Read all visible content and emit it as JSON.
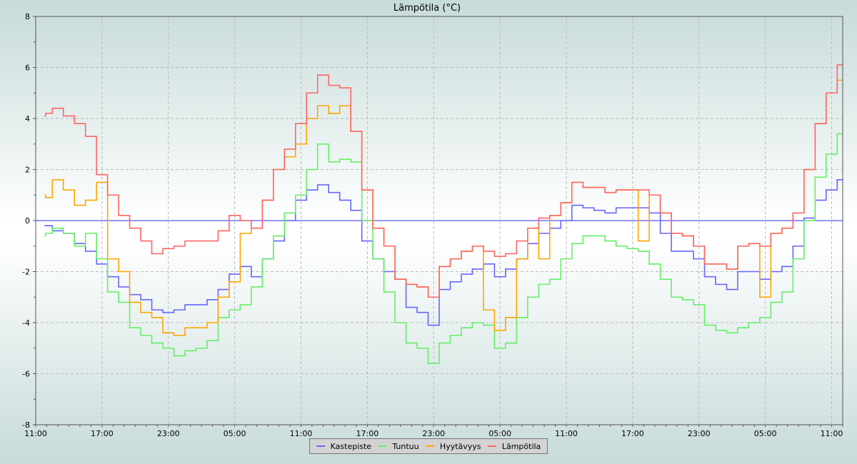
{
  "chart_data": {
    "type": "line",
    "title": "Lämpötila (°C)",
    "xlabel": "",
    "ylabel": "",
    "ylim": [
      -8,
      8
    ],
    "yticks": [
      -8,
      -6,
      -4,
      -2,
      0,
      2,
      4,
      6,
      8
    ],
    "xtick_labels": [
      "11:00",
      "17:00",
      "23:00",
      "05:00",
      "11:00",
      "17:00",
      "23:00",
      "05:00",
      "11:00",
      "17:00",
      "23:00",
      "05:00",
      "11:00"
    ],
    "grid": true,
    "legend_position": "bottom",
    "reference_line": {
      "y": 0,
      "color": "#5555ff"
    },
    "x": [
      "11:48",
      "12:00",
      "13:00",
      "14:00",
      "15:00",
      "16:00",
      "17:00",
      "18:00",
      "19:00",
      "20:00",
      "21:00",
      "22:00",
      "23:00",
      "00:00",
      "01:00",
      "02:00",
      "03:00",
      "04:00",
      "05:00",
      "06:00",
      "07:00",
      "08:00",
      "09:00",
      "10:00",
      "11:00",
      "12:00",
      "13:00",
      "14:00",
      "15:00",
      "16:00",
      "17:00",
      "18:00",
      "19:00",
      "20:00",
      "21:00",
      "22:00",
      "23:00",
      "00:00",
      "01:00",
      "02:00",
      "03:00",
      "04:00",
      "05:00",
      "06:00",
      "07:00",
      "08:00",
      "09:00",
      "10:00",
      "11:00",
      "12:00",
      "13:00",
      "14:00",
      "15:00",
      "16:00",
      "17:00",
      "18:00",
      "19:00",
      "20:00",
      "21:00",
      "22:00",
      "23:00",
      "00:00",
      "01:00",
      "02:00",
      "03:00",
      "04:00",
      "05:00",
      "06:00",
      "07:00",
      "08:00",
      "09:00",
      "10:00",
      "11:00",
      "12:00"
    ],
    "series": [
      {
        "name": "Kastepiste",
        "color": "#6666ff",
        "values": [
          -0.2,
          -0.2,
          -0.4,
          -0.5,
          -0.9,
          -1.2,
          -1.7,
          -2.2,
          -2.6,
          -2.9,
          -3.1,
          -3.5,
          -3.6,
          -3.5,
          -3.3,
          -3.3,
          -3.1,
          -2.7,
          -2.1,
          -1.8,
          -2.2,
          -1.5,
          -0.8,
          0.0,
          0.8,
          1.2,
          1.4,
          1.1,
          0.8,
          0.4,
          -0.8,
          -1.5,
          -2.0,
          -2.3,
          -3.4,
          -3.6,
          -4.1,
          -2.7,
          -2.4,
          -2.1,
          -1.9,
          -1.7,
          -2.2,
          -1.9,
          -1.5,
          -0.9,
          -0.5,
          -0.3,
          0.0,
          0.6,
          0.5,
          0.4,
          0.3,
          0.5,
          0.5,
          0.5,
          0.3,
          -0.5,
          -1.2,
          -1.2,
          -1.5,
          -2.2,
          -2.5,
          -2.7,
          -2.0,
          -2.0,
          -2.3,
          -2.0,
          -1.8,
          -1.0,
          0.1,
          0.8,
          1.2,
          1.6
        ]
      },
      {
        "name": "Tuntuu",
        "color": "#66ee66",
        "values": [
          -0.6,
          -0.5,
          -0.3,
          -0.5,
          -1.0,
          -0.5,
          -1.5,
          -2.8,
          -3.2,
          -4.2,
          -4.5,
          -4.8,
          -5.0,
          -5.3,
          -5.1,
          -5.0,
          -4.7,
          -3.8,
          -3.5,
          -3.3,
          -2.6,
          -1.5,
          -0.6,
          0.3,
          1.0,
          2.0,
          3.0,
          2.3,
          2.4,
          2.3,
          0.0,
          -1.5,
          -2.8,
          -4.0,
          -4.8,
          -5.0,
          -5.6,
          -4.8,
          -4.5,
          -4.2,
          -4.0,
          -4.1,
          -5.0,
          -4.8,
          -3.8,
          -3.0,
          -2.5,
          -2.3,
          -1.5,
          -0.9,
          -0.6,
          -0.6,
          -0.8,
          -1.0,
          -1.1,
          -1.2,
          -1.7,
          -2.3,
          -3.0,
          -3.1,
          -3.3,
          -4.1,
          -4.3,
          -4.4,
          -4.2,
          -4.0,
          -3.8,
          -3.2,
          -2.8,
          -1.5,
          0.0,
          1.7,
          2.6,
          3.4
        ]
      },
      {
        "name": "Hyytävyys",
        "color": "#ffa500",
        "values": [
          1.0,
          0.9,
          1.6,
          1.2,
          0.6,
          0.8,
          1.5,
          -1.5,
          -2.0,
          -3.2,
          -3.6,
          -3.8,
          -4.4,
          -4.5,
          -4.2,
          -4.2,
          -4.0,
          -3.0,
          -2.4,
          -0.5,
          -0.3,
          0.8,
          2.0,
          2.5,
          3.0,
          4.0,
          4.5,
          4.2,
          4.5,
          3.5,
          1.2,
          -0.3,
          -1.0,
          -2.3,
          -2.5,
          -2.6,
          -3.0,
          -1.8,
          -1.5,
          -1.2,
          -1.0,
          -3.5,
          -4.3,
          -3.8,
          -1.5,
          -0.3,
          -1.5,
          0.2,
          0.7,
          1.5,
          1.3,
          1.3,
          1.1,
          1.2,
          1.2,
          -0.8,
          1.0,
          0.3,
          -0.5,
          -0.6,
          -1.0,
          -1.7,
          -1.7,
          -1.9,
          -1.0,
          -0.9,
          -3.0,
          -0.5,
          -0.3,
          0.3,
          2.0,
          3.8,
          5.0,
          5.5
        ]
      },
      {
        "name": "Lämpötila",
        "color": "#ff6666",
        "values": [
          4.1,
          4.2,
          4.4,
          4.1,
          3.8,
          3.3,
          1.8,
          1.0,
          0.2,
          -0.3,
          -0.8,
          -1.3,
          -1.1,
          -1.0,
          -0.8,
          -0.8,
          -0.8,
          -0.4,
          0.2,
          0.0,
          -0.3,
          0.8,
          2.0,
          2.8,
          3.8,
          5.0,
          5.7,
          5.3,
          5.2,
          3.5,
          1.2,
          -0.3,
          -1.0,
          -2.3,
          -2.5,
          -2.6,
          -3.0,
          -1.8,
          -1.5,
          -1.2,
          -1.0,
          -1.2,
          -1.4,
          -1.3,
          -0.8,
          -0.3,
          0.1,
          0.2,
          0.7,
          1.5,
          1.3,
          1.3,
          1.1,
          1.2,
          1.2,
          1.2,
          1.0,
          0.3,
          -0.5,
          -0.6,
          -1.0,
          -1.7,
          -1.7,
          -1.9,
          -1.0,
          -0.9,
          -1.0,
          -0.5,
          -0.3,
          0.3,
          2.0,
          3.8,
          5.0,
          6.1
        ]
      }
    ]
  }
}
